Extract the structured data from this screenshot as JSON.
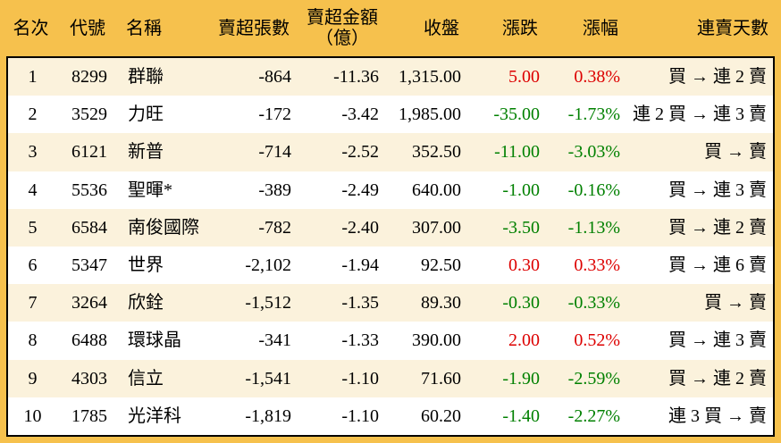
{
  "colors": {
    "frame": "#F6C14D",
    "stripe": "#FBF2DC",
    "up_red": "#DD0000",
    "down_green": "#008000"
  },
  "chart_data": {
    "type": "table",
    "columns": [
      {
        "key": "rank",
        "label": "名次"
      },
      {
        "key": "code",
        "label": "代號"
      },
      {
        "key": "name",
        "label": "名稱"
      },
      {
        "key": "volume",
        "label": "賣超張數"
      },
      {
        "key": "amount",
        "label": "賣超金額（億）"
      },
      {
        "key": "close",
        "label": "收盤"
      },
      {
        "key": "change",
        "label": "漲跌"
      },
      {
        "key": "pct",
        "label": "漲幅"
      },
      {
        "key": "days",
        "label": "連賣天數"
      }
    ],
    "rows": [
      {
        "rank": "1",
        "code": "8299",
        "name": "群聯",
        "volume": "-864",
        "amount": "-11.36",
        "close": "1,315.00",
        "change": "5.00",
        "pct": "0.38%",
        "trend": "up",
        "days": "買 → 連 2 賣"
      },
      {
        "rank": "2",
        "code": "3529",
        "name": "力旺",
        "volume": "-172",
        "amount": "-3.42",
        "close": "1,985.00",
        "change": "-35.00",
        "pct": "-1.73%",
        "trend": "down",
        "days": "連 2 買 → 連 3 賣"
      },
      {
        "rank": "3",
        "code": "6121",
        "name": "新普",
        "volume": "-714",
        "amount": "-2.52",
        "close": "352.50",
        "change": "-11.00",
        "pct": "-3.03%",
        "trend": "down",
        "days": "買 → 賣"
      },
      {
        "rank": "4",
        "code": "5536",
        "name": "聖暉*",
        "volume": "-389",
        "amount": "-2.49",
        "close": "640.00",
        "change": "-1.00",
        "pct": "-0.16%",
        "trend": "down",
        "days": "買 → 連 3 賣"
      },
      {
        "rank": "5",
        "code": "6584",
        "name": "南俊國際",
        "volume": "-782",
        "amount": "-2.40",
        "close": "307.00",
        "change": "-3.50",
        "pct": "-1.13%",
        "trend": "down",
        "days": "買 → 連 2 賣"
      },
      {
        "rank": "6",
        "code": "5347",
        "name": "世界",
        "volume": "-2,102",
        "amount": "-1.94",
        "close": "92.50",
        "change": "0.30",
        "pct": "0.33%",
        "trend": "up",
        "days": "買 → 連 6 賣"
      },
      {
        "rank": "7",
        "code": "3264",
        "name": "欣銓",
        "volume": "-1,512",
        "amount": "-1.35",
        "close": "89.30",
        "change": "-0.30",
        "pct": "-0.33%",
        "trend": "down",
        "days": "買 → 賣"
      },
      {
        "rank": "8",
        "code": "6488",
        "name": "環球晶",
        "volume": "-341",
        "amount": "-1.33",
        "close": "390.00",
        "change": "2.00",
        "pct": "0.52%",
        "trend": "up",
        "days": "買 → 連 3 賣"
      },
      {
        "rank": "9",
        "code": "4303",
        "name": "信立",
        "volume": "-1,541",
        "amount": "-1.10",
        "close": "71.60",
        "change": "-1.90",
        "pct": "-2.59%",
        "trend": "down",
        "days": "買 → 連 2 賣"
      },
      {
        "rank": "10",
        "code": "1785",
        "name": "光洋科",
        "volume": "-1,819",
        "amount": "-1.10",
        "close": "60.20",
        "change": "-1.40",
        "pct": "-2.27%",
        "trend": "down",
        "days": "連 3 買 → 賣"
      }
    ]
  }
}
